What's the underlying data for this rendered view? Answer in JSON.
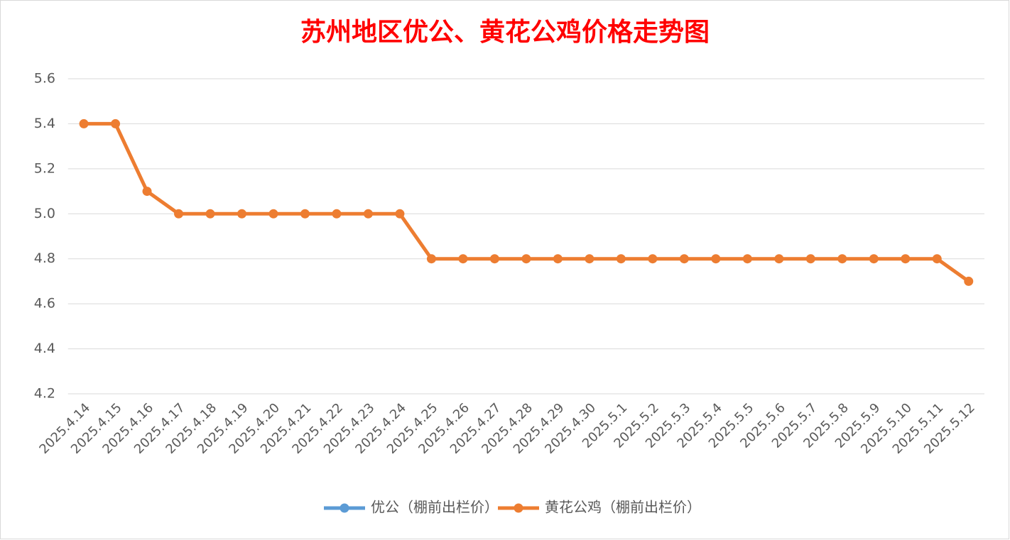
{
  "chart_data": {
    "type": "line",
    "title": "苏州地区优公、黄花公鸡价格走势图",
    "categories": [
      "2025.4.14",
      "2025.4.15",
      "2025.4.16",
      "2025.4.17",
      "2025.4.18",
      "2025.4.19",
      "2025.4.20",
      "2025.4.21",
      "2025.4.22",
      "2025.4.23",
      "2025.4.24",
      "2025.4.25",
      "2025.4.26",
      "2025.4.27",
      "2025.4.28",
      "2025.4.29",
      "2025.4.30",
      "2025.5.1",
      "2025.5.2",
      "2025.5.3",
      "2025.5.4",
      "2025.5.5",
      "2025.5.6",
      "2025.5.7",
      "2025.5.8",
      "2025.5.9",
      "2025.5.10",
      "2025.5.11",
      "2025.5.12"
    ],
    "series": [
      {
        "name": "优公（棚前出栏价）",
        "color": "#5b9bd5",
        "values": [
          null,
          null,
          null,
          null,
          null,
          null,
          null,
          null,
          null,
          null,
          null,
          null,
          null,
          null,
          null,
          null,
          null,
          null,
          null,
          null,
          null,
          null,
          null,
          null,
          null,
          null,
          null,
          null,
          null
        ]
      },
      {
        "name": "黄花公鸡（棚前出栏价）",
        "color": "#ed7d31",
        "values": [
          5.4,
          5.4,
          5.1,
          5.0,
          5.0,
          5.0,
          5.0,
          5.0,
          5.0,
          5.0,
          5.0,
          4.8,
          4.8,
          4.8,
          4.8,
          4.8,
          4.8,
          4.8,
          4.8,
          4.8,
          4.8,
          4.8,
          4.8,
          4.8,
          4.8,
          4.8,
          4.8,
          4.8,
          4.7
        ]
      }
    ],
    "ylim": [
      4.2,
      5.6
    ],
    "yticks": [
      4.2,
      4.4,
      4.6,
      4.8,
      {
        "value": 5,
        "label": "5.0"
      },
      5.2,
      5.4,
      5.6
    ],
    "grid": true,
    "legend": "bottom"
  }
}
